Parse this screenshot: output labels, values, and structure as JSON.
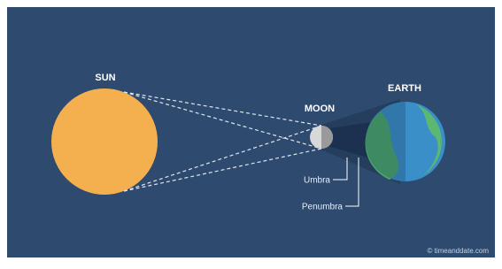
{
  "labels": {
    "sun": "SUN",
    "moon": "MOON",
    "earth": "EARTH",
    "umbra": "Umbra",
    "penumbra": "Penumbra"
  },
  "credit": "© timeanddate.com"
}
